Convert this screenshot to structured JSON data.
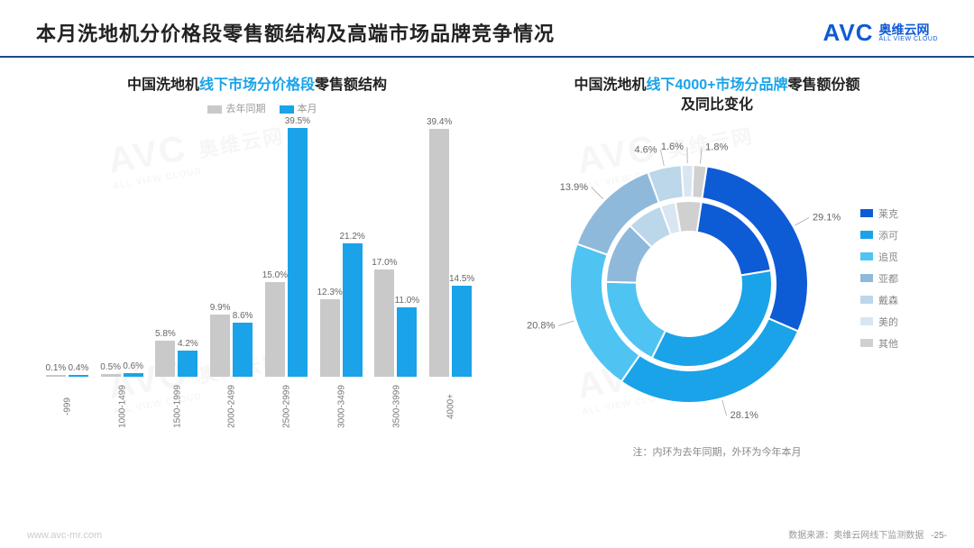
{
  "header": {
    "title": "本月洗地机分价格段零售额结构及高端市场品牌竞争情况",
    "logo_text": "AVC",
    "logo_cn": "奥维云网",
    "logo_en": "ALL VIEW CLOUD"
  },
  "watermark": {
    "text": "AVC 奥维云网",
    "sub": "ALL VIEW CLOUD"
  },
  "bar_chart": {
    "title_pre": "中国洗地机",
    "title_hl": "线下市场分价格段",
    "title_post": "零售额结构",
    "legend": {
      "a": "去年同期",
      "b": "本月"
    },
    "colors": {
      "a": "#c9c9c9",
      "b": "#1aa3e8"
    },
    "ymax": 40,
    "categories": [
      "-999",
      "1000-1499",
      "1500-1999",
      "2000-2499",
      "2500-2999",
      "3000-3499",
      "3500-3999",
      "4000+"
    ],
    "series_a": [
      0.1,
      0.5,
      5.8,
      9.9,
      15.0,
      12.3,
      17.0,
      39.4
    ],
    "series_b": [
      0.4,
      0.6,
      4.2,
      8.6,
      39.5,
      21.2,
      11.0,
      14.5
    ],
    "labels_a": [
      "0.1%",
      "0.5%",
      "5.8%",
      "9.9%",
      "15.0%",
      "12.3%",
      "17.0%",
      "39.4%"
    ],
    "labels_b": [
      "0.4%",
      "0.6%",
      "4.2%",
      "8.6%",
      "39.5%",
      "21.2%",
      "11.0%",
      "14.5%"
    ]
  },
  "donut": {
    "title_pre": "中国洗地机",
    "title_hl": "线下4000+市场分品牌",
    "title_post": "零售额份额",
    "title_line2": "及同比变化",
    "note": "注：内环为去年同期，外环为今年本月",
    "legend_items": [
      "莱克",
      "添可",
      "追觅",
      "亚都",
      "戴森",
      "美的",
      "其他"
    ],
    "colors": [
      "#0e5bd6",
      "#1aa3e8",
      "#4fc4f2",
      "#8fb9db",
      "#bcd6ea",
      "#d9e6f2",
      "#d0d0d0"
    ],
    "outer": [
      29.1,
      28.1,
      20.8,
      13.9,
      4.6,
      1.6,
      1.8
    ],
    "outer_labels": [
      "29.1%",
      "28.1%",
      "20.8%",
      "13.9%",
      "4.6%",
      "1.6%",
      "1.8%"
    ],
    "inner": [
      20,
      35,
      18,
      12,
      7,
      3,
      5
    ]
  },
  "footer": {
    "source": "数据来源：奥维云网线下监测数据",
    "page": "-25-",
    "url": "www.avc-mr.com"
  }
}
